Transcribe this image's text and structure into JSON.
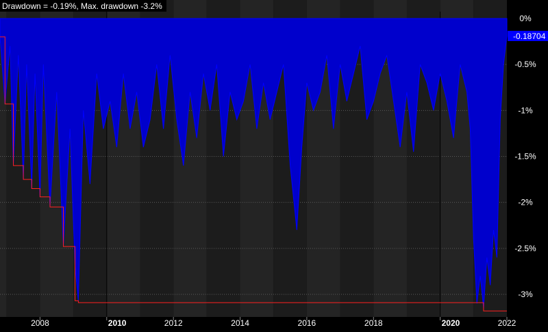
{
  "header": {
    "title": "Drawdown = -0.19%, Max. drawdown -3.2%"
  },
  "last_value_badge": "-0.18704",
  "colors": {
    "background": "#000000",
    "band_a": "#1c1c1c",
    "band_b": "#242424",
    "drawdown_fill": "#0000ff",
    "max_drawdown_line": "#ff2020",
    "text": "#ffffff",
    "badge_bg": "#0000ff"
  },
  "chart_data": {
    "type": "area",
    "title": "Drawdown = -0.19%, Max. drawdown -3.2%",
    "y_ticks": [
      "0%",
      "-0.5%",
      "-1%",
      "-1.5%",
      "-2%",
      "-2.5%",
      "-3%"
    ],
    "y_tick_values": [
      0,
      -0.5,
      -1,
      -1.5,
      -2,
      -2.5,
      -3
    ],
    "x_ticks": [
      "2008",
      "2010",
      "2012",
      "2014",
      "2016",
      "2018",
      "2020",
      "2022"
    ],
    "x_tick_values": [
      2008,
      2010,
      2012,
      2014,
      2016,
      2018,
      2020,
      2022
    ],
    "x_tick_bold": [
      false,
      true,
      false,
      false,
      false,
      false,
      true,
      false
    ],
    "xlim": [
      2006.8,
      2022.0
    ],
    "ylim": [
      -3.25,
      0
    ],
    "grid": true,
    "series": [
      {
        "kind": "drawdown",
        "x": [
          2006.8,
          2006.95,
          2007.1,
          2007.2,
          2007.35,
          2007.5,
          2007.6,
          2007.75,
          2007.85,
          2008.0,
          2008.1,
          2008.3,
          2008.5,
          2008.7,
          2008.9,
          2009.05,
          2009.15,
          2009.3,
          2009.5,
          2009.7,
          2009.9,
          2010.1,
          2010.3,
          2010.5,
          2010.7,
          2010.9,
          2011.1,
          2011.3,
          2011.5,
          2011.7,
          2011.9,
          2012.1,
          2012.3,
          2012.5,
          2012.7,
          2012.9,
          2013.1,
          2013.3,
          2013.5,
          2013.7,
          2013.9,
          2014.1,
          2014.3,
          2014.5,
          2014.7,
          2014.9,
          2015.1,
          2015.3,
          2015.5,
          2015.7,
          2015.85,
          2016.0,
          2016.2,
          2016.4,
          2016.6,
          2016.8,
          2017.0,
          2017.2,
          2017.4,
          2017.6,
          2017.8,
          2018.0,
          2018.2,
          2018.4,
          2018.6,
          2018.8,
          2019.0,
          2019.2,
          2019.4,
          2019.6,
          2019.8,
          2020.0,
          2020.2,
          2020.4,
          2020.6,
          2020.8,
          2020.9,
          2021.0,
          2021.1,
          2021.2,
          2021.3,
          2021.4,
          2021.5,
          2021.6,
          2021.7,
          2021.8,
          2021.9,
          2022.0
        ],
        "y": [
          -0.2,
          -0.93,
          -0.3,
          -1.6,
          -0.4,
          -1.75,
          -0.5,
          -1.85,
          -0.6,
          -1.94,
          -0.5,
          -2.05,
          -0.8,
          -2.48,
          -1.2,
          -2.7,
          -3.07,
          -1.0,
          -1.8,
          -0.6,
          -1.2,
          -0.9,
          -1.4,
          -0.6,
          -1.2,
          -0.8,
          -1.4,
          -1.1,
          -0.5,
          -1.2,
          -0.4,
          -1.1,
          -1.6,
          -0.8,
          -1.3,
          -0.6,
          -1.0,
          -0.5,
          -1.5,
          -0.8,
          -1.1,
          -0.9,
          -0.5,
          -1.2,
          -0.7,
          -1.1,
          -0.8,
          -0.5,
          -1.6,
          -2.3,
          -1.4,
          -0.7,
          -1.0,
          -0.8,
          -0.4,
          -1.2,
          -0.5,
          -0.9,
          -0.6,
          -0.3,
          -1.1,
          -0.9,
          -0.6,
          -0.4,
          -0.9,
          -1.4,
          -0.8,
          -1.45,
          -0.5,
          -0.7,
          -1.0,
          -0.6,
          -0.9,
          -1.3,
          -0.5,
          -0.8,
          -1.2,
          -2.4,
          -3.1,
          -2.8,
          -3.15,
          -2.6,
          -2.9,
          -2.3,
          -2.6,
          -1.1,
          -0.5,
          -0.19
        ]
      },
      {
        "kind": "max-drawdown",
        "x": [
          2006.8,
          2006.95,
          2006.95,
          2007.2,
          2007.2,
          2007.5,
          2007.5,
          2007.75,
          2007.75,
          2008.0,
          2008.0,
          2008.3,
          2008.3,
          2008.7,
          2008.7,
          2009.05,
          2009.05,
          2009.15,
          2009.15,
          2021.3,
          2021.3,
          2022.0
        ],
        "y": [
          -0.2,
          -0.2,
          -0.93,
          -0.93,
          -1.6,
          -1.6,
          -1.75,
          -1.75,
          -1.85,
          -1.85,
          -1.94,
          -1.94,
          -2.05,
          -2.05,
          -2.48,
          -2.48,
          -3.07,
          -3.07,
          -3.09,
          -3.09,
          -3.18,
          -3.18
        ]
      }
    ]
  }
}
